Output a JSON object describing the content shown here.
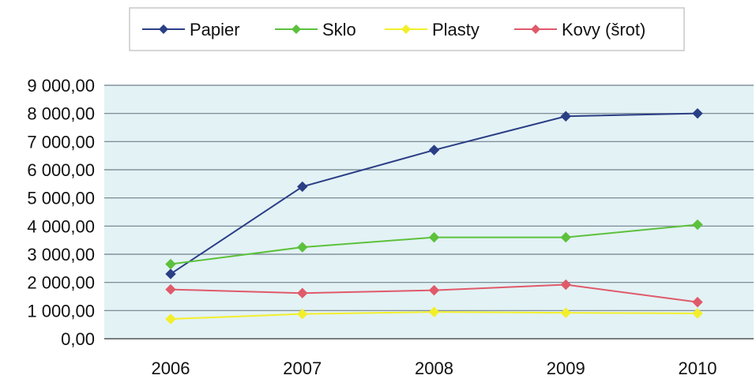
{
  "chart_data": {
    "type": "line",
    "title": "",
    "xlabel": "",
    "ylabel": "",
    "categories": [
      "2006",
      "2007",
      "2008",
      "2009",
      "2010"
    ],
    "ylim": [
      0,
      9000
    ],
    "yticks": [
      0,
      1000,
      2000,
      3000,
      4000,
      5000,
      6000,
      7000,
      8000,
      9000
    ],
    "ytick_labels": [
      "0,00",
      "1 000,00",
      "2 000,00",
      "3 000,00",
      "4 000,00",
      "5 000,00",
      "6 000,00",
      "7 000,00",
      "8 000,00",
      "9 000,00"
    ],
    "grid": true,
    "legend_position": "top",
    "plot_background": "#e3f2f5",
    "series": [
      {
        "name": "Papier",
        "color": "#2b3f86",
        "values": [
          2300,
          5400,
          6700,
          7900,
          8000
        ]
      },
      {
        "name": "Sklo",
        "color": "#5cc13c",
        "values": [
          2650,
          3250,
          3600,
          3600,
          4050
        ]
      },
      {
        "name": "Plasty",
        "color": "#f2ef2a",
        "values": [
          700,
          880,
          950,
          920,
          900
        ]
      },
      {
        "name": "Kovy (šrot)",
        "color": "#e05a6a",
        "values": [
          1750,
          1620,
          1720,
          1920,
          1300
        ]
      }
    ]
  }
}
